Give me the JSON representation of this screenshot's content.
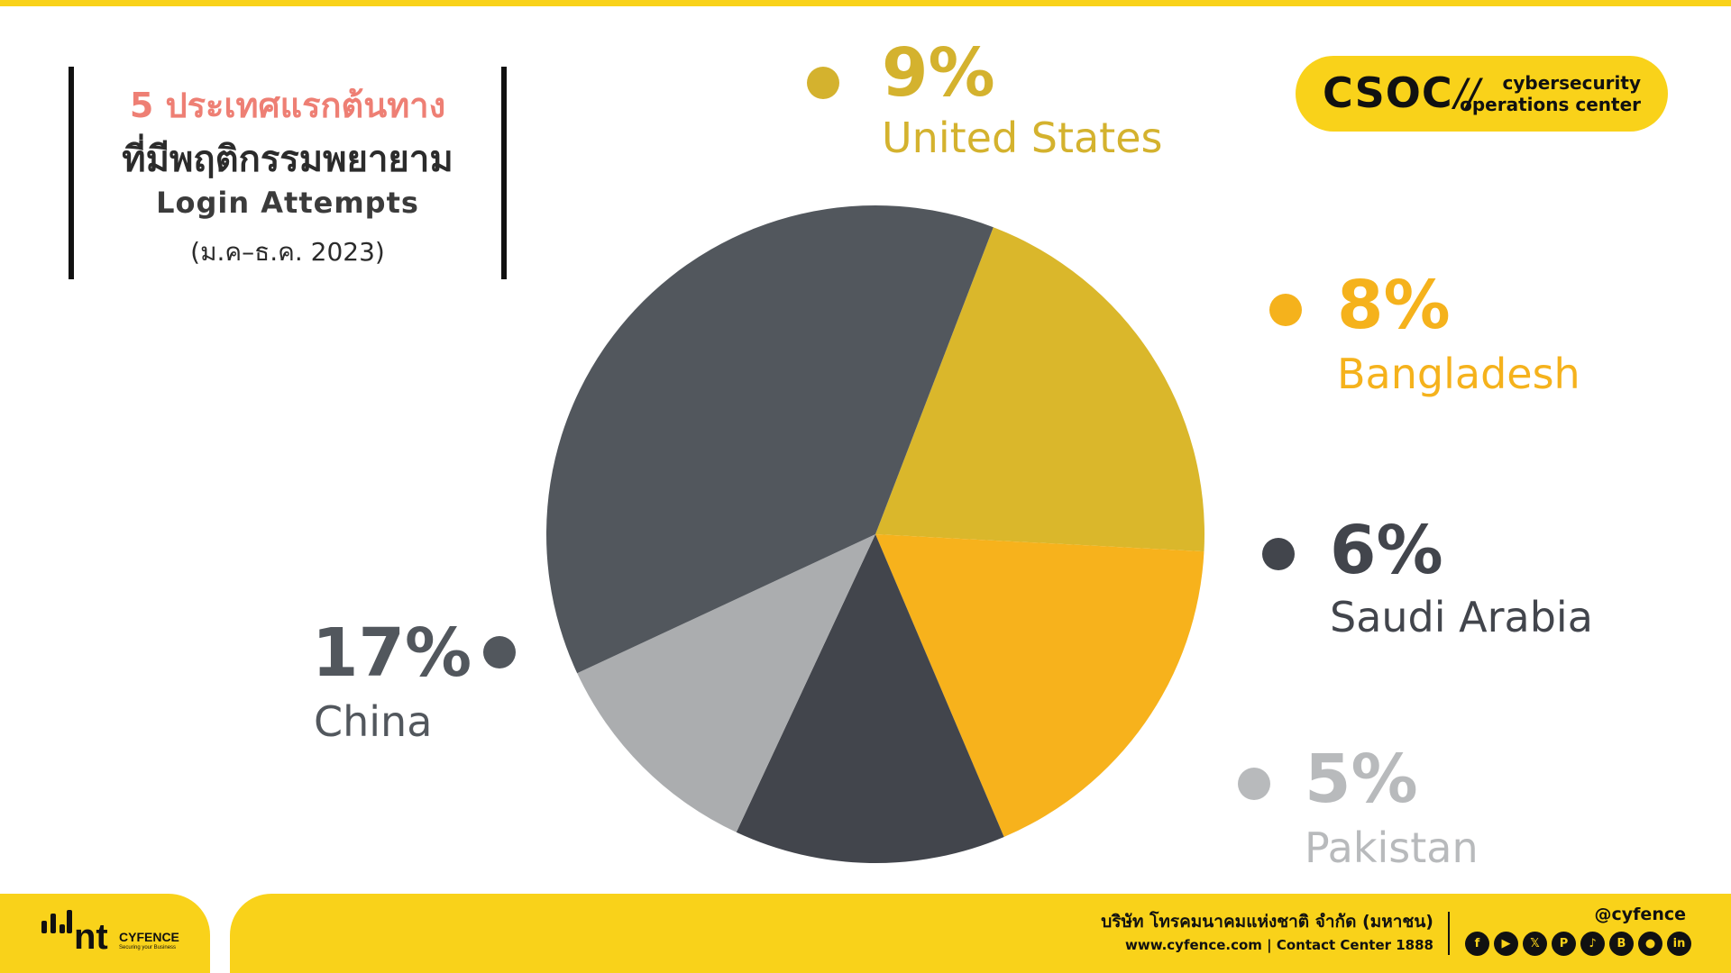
{
  "title": {
    "line1": "5 ประเทศแรกต้นทาง",
    "line2": "ที่มีพฤติกรรมพยายาม",
    "line3": "Login Attempts",
    "line4": "(ม.ค–ธ.ค. 2023)"
  },
  "badge": {
    "name": "CSOC",
    "slash": "//",
    "sub1": "cybersecurity",
    "sub2": "operations center"
  },
  "chart_data": {
    "type": "pie",
    "categories": [
      "United States",
      "Bangladesh",
      "Saudi Arabia",
      "Pakistan",
      "China"
    ],
    "values": [
      9,
      8,
      6,
      5,
      17
    ],
    "labels": [
      "9%",
      "8%",
      "6%",
      "5%",
      "17%"
    ],
    "colors": [
      "#dab72b",
      "#f7b21c",
      "#42454c",
      "#abadaf",
      "#52575d"
    ],
    "label_colors": [
      "#d4b22e",
      "#f5b21c",
      "#42454c",
      "#b8babc",
      "#52575d"
    ]
  },
  "footer": {
    "logo_text": "nt",
    "logo_brand": "CYFENCE",
    "logo_tagline": "Securing your Business",
    "company": "บริษัท โทรคมนาคมแห่งชาติ จำกัด (มหาชน)",
    "website": "www.cyfence.com | Contact Center 1888",
    "handle": "@cyfence",
    "social_icons": [
      "facebook-icon",
      "youtube-icon",
      "x-icon",
      "pinterest-icon",
      "tiktok-icon",
      "blockdit-icon",
      "medium-icon",
      "linkedin-icon"
    ]
  },
  "colors": {
    "accent": "#f9d21a",
    "title_highlight": "#ee7f74"
  }
}
